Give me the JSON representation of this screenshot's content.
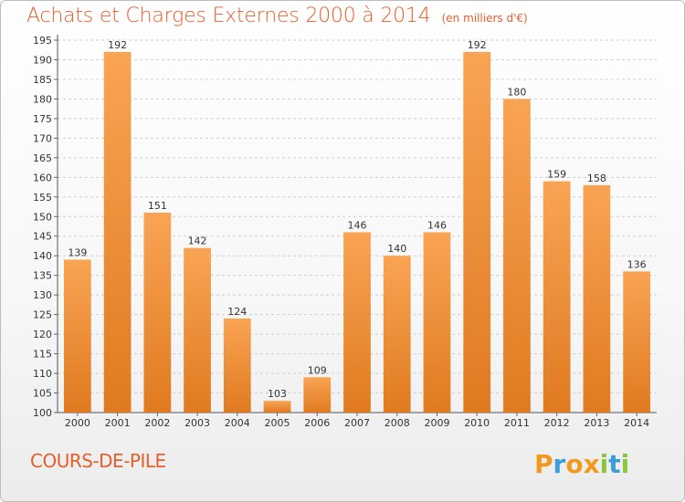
{
  "header": {
    "title": "Achats et Charges Externes 2000 à 2014",
    "subtitle": "(en milliers d'€)"
  },
  "footer": {
    "city": "COURS-DE-PILE",
    "logo_text": "Proxiti"
  },
  "colors": {
    "accent": "#e85d2c",
    "bar_top": "#f9a454",
    "bar_bottom": "#e07a20"
  },
  "chart_data": {
    "type": "bar",
    "categories": [
      "2000",
      "2001",
      "2002",
      "2003",
      "2004",
      "2005",
      "2006",
      "2007",
      "2008",
      "2009",
      "2010",
      "2011",
      "2012",
      "2013",
      "2014"
    ],
    "values": [
      139,
      192,
      151,
      142,
      124,
      103,
      109,
      146,
      140,
      146,
      192,
      180,
      159,
      158,
      136
    ],
    "ylim": [
      100,
      195
    ],
    "yticks": [
      100,
      105,
      110,
      115,
      120,
      125,
      130,
      135,
      140,
      145,
      150,
      155,
      160,
      165,
      170,
      175,
      180,
      185,
      190,
      195
    ],
    "grid": "horizontal dashed",
    "data_labels": true
  }
}
